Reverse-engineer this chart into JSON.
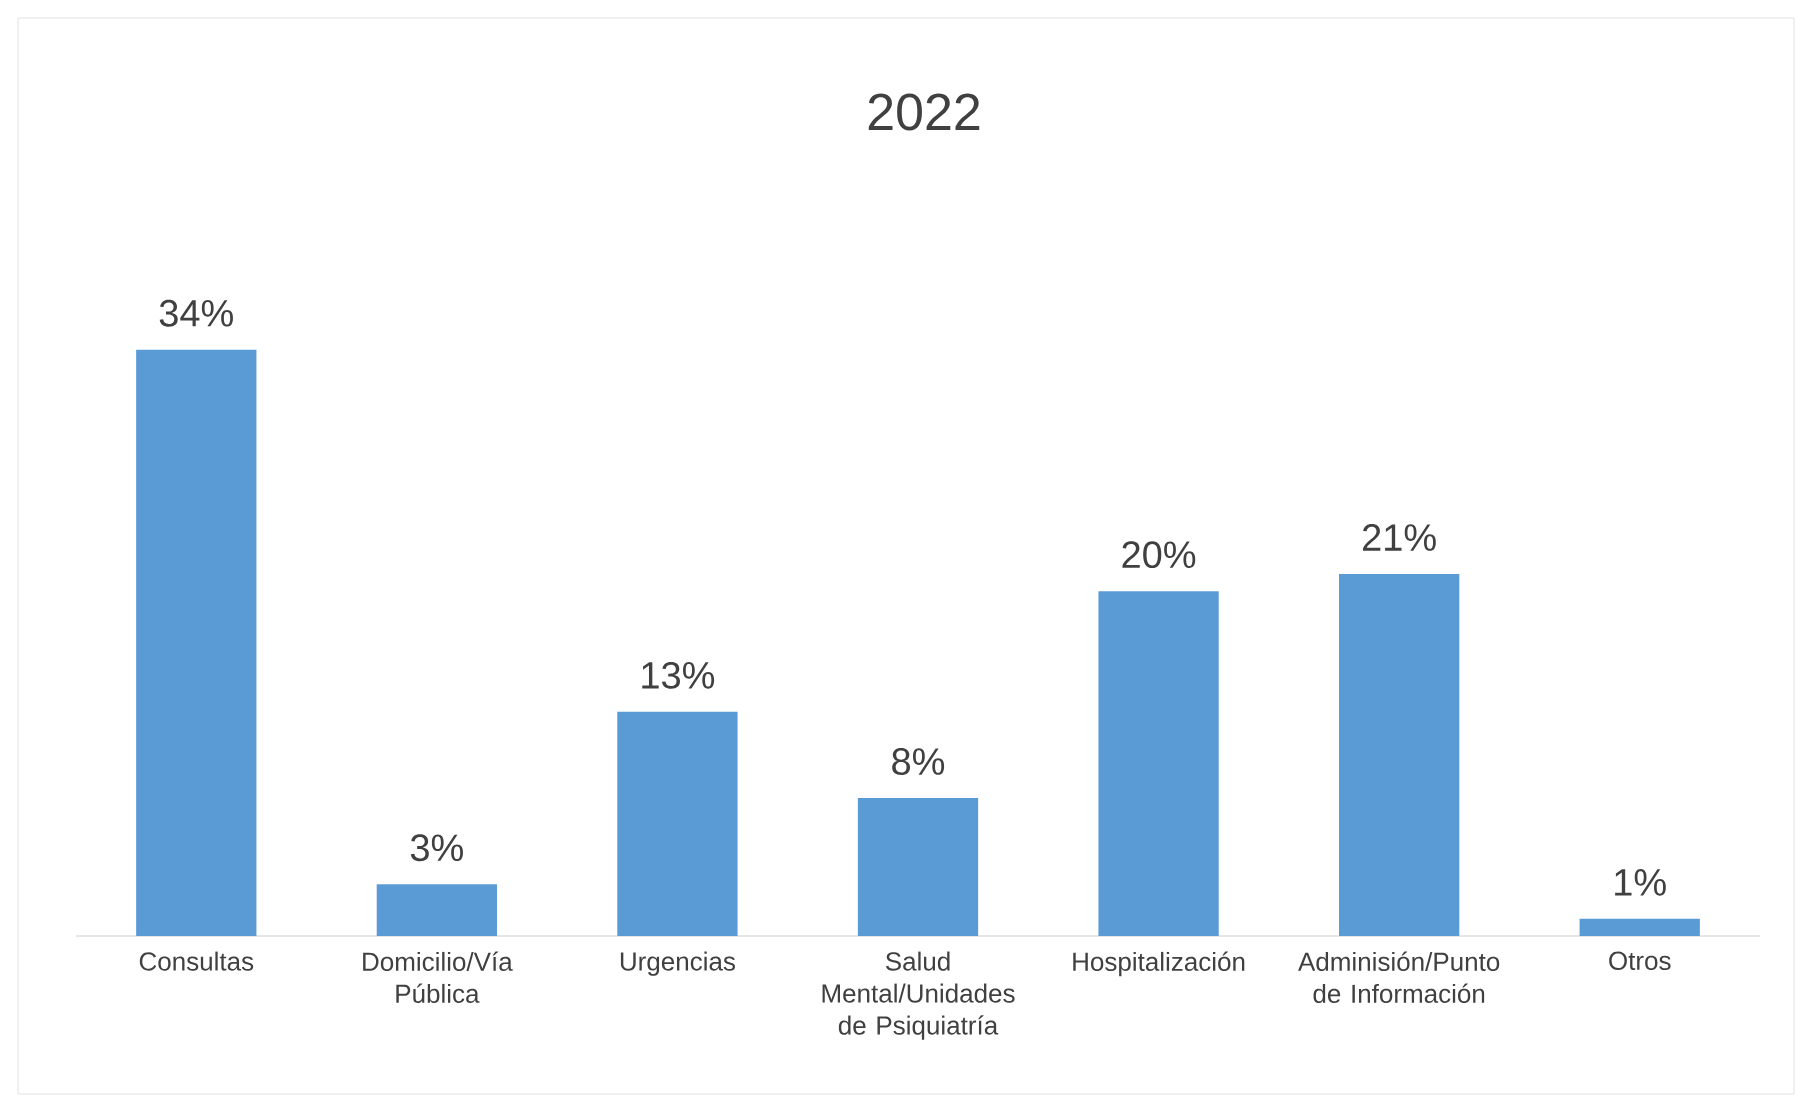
{
  "chart_data": {
    "type": "bar",
    "title": "2022",
    "categories": [
      "Consultas",
      "Domicilio/Vía Pública",
      "Urgencias",
      "Salud Mental/Unidades de Psiquiatría",
      "Hospitalización",
      "Adminisión/Punto de Información",
      "Otros"
    ],
    "values": [
      34,
      3,
      13,
      8,
      20,
      21,
      1
    ],
    "value_labels": [
      "34%",
      "3%",
      "13%",
      "8%",
      "20%",
      "21%",
      "1%"
    ],
    "color": "#5b9bd5"
  }
}
